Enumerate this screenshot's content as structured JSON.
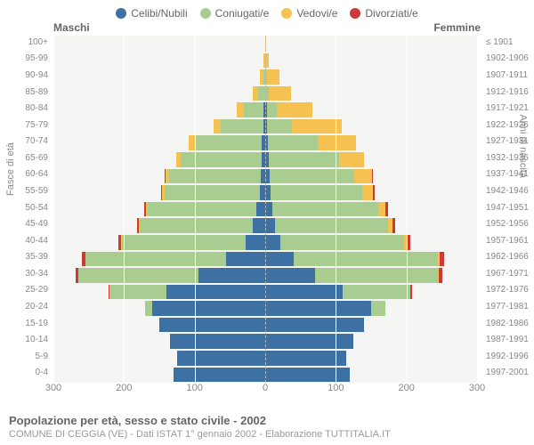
{
  "title": "Popolazione per età, sesso e stato civile - 2002",
  "subtitle": "COMUNE DI CEGGIA (VE) - Dati ISTAT 1° gennaio 2002 - Elaborazione TUTTITALIA.IT",
  "legend": [
    {
      "label": "Celibi/Nubili",
      "color": "#3d71a3"
    },
    {
      "label": "Coniugati/e",
      "color": "#a9cd90"
    },
    {
      "label": "Vedovi/e",
      "color": "#f5c251"
    },
    {
      "label": "Divorziati/e",
      "color": "#cc3939"
    }
  ],
  "headers": {
    "male": "Maschi",
    "female": "Femmine"
  },
  "axes": {
    "left_title": "Fasce di età",
    "right_title": "Anni di nascita",
    "x_max": 300,
    "x_ticks": [
      300,
      200,
      100,
      0,
      100,
      200,
      300
    ]
  },
  "colors": {
    "bg": "#f5f5f3",
    "grid": "#ffffff",
    "center": "#bba87a"
  },
  "rows": [
    {
      "age": "100+",
      "birth": "≤ 1901",
      "m": [
        0,
        0,
        0,
        0
      ],
      "f": [
        0,
        0,
        1,
        0
      ]
    },
    {
      "age": "95-99",
      "birth": "1902-1906",
      "m": [
        0,
        0,
        2,
        0
      ],
      "f": [
        0,
        0,
        5,
        0
      ]
    },
    {
      "age": "90-94",
      "birth": "1907-1911",
      "m": [
        0,
        2,
        5,
        0
      ],
      "f": [
        0,
        2,
        18,
        0
      ]
    },
    {
      "age": "85-89",
      "birth": "1912-1916",
      "m": [
        0,
        10,
        8,
        0
      ],
      "f": [
        0,
        5,
        32,
        0
      ]
    },
    {
      "age": "80-84",
      "birth": "1917-1921",
      "m": [
        2,
        28,
        10,
        0
      ],
      "f": [
        2,
        15,
        50,
        0
      ]
    },
    {
      "age": "75-79",
      "birth": "1922-1926",
      "m": [
        3,
        60,
        10,
        0
      ],
      "f": [
        3,
        35,
        70,
        0
      ]
    },
    {
      "age": "70-74",
      "birth": "1927-1931",
      "m": [
        5,
        95,
        8,
        0
      ],
      "f": [
        4,
        70,
        55,
        0
      ]
    },
    {
      "age": "65-69",
      "birth": "1932-1936",
      "m": [
        5,
        115,
        6,
        0
      ],
      "f": [
        5,
        100,
        35,
        0
      ]
    },
    {
      "age": "60-64",
      "birth": "1937-1941",
      "m": [
        6,
        130,
        5,
        1
      ],
      "f": [
        6,
        120,
        25,
        1
      ]
    },
    {
      "age": "55-59",
      "birth": "1942-1946",
      "m": [
        8,
        135,
        3,
        2
      ],
      "f": [
        8,
        130,
        15,
        2
      ]
    },
    {
      "age": "50-54",
      "birth": "1947-1951",
      "m": [
        12,
        155,
        2,
        3
      ],
      "f": [
        10,
        150,
        10,
        4
      ]
    },
    {
      "age": "45-49",
      "birth": "1952-1956",
      "m": [
        18,
        160,
        1,
        3
      ],
      "f": [
        14,
        160,
        6,
        4
      ]
    },
    {
      "age": "40-44",
      "birth": "1957-1961",
      "m": [
        28,
        175,
        1,
        4
      ],
      "f": [
        22,
        175,
        4,
        5
      ]
    },
    {
      "age": "35-39",
      "birth": "1962-1966",
      "m": [
        55,
        200,
        0,
        5
      ],
      "f": [
        40,
        205,
        2,
        6
      ]
    },
    {
      "age": "30-34",
      "birth": "1967-1971",
      "m": [
        95,
        170,
        0,
        4
      ],
      "f": [
        70,
        175,
        1,
        5
      ]
    },
    {
      "age": "25-29",
      "birth": "1972-1976",
      "m": [
        140,
        80,
        0,
        2
      ],
      "f": [
        110,
        95,
        0,
        3
      ]
    },
    {
      "age": "20-24",
      "birth": "1977-1981",
      "m": [
        160,
        10,
        0,
        0
      ],
      "f": [
        150,
        20,
        0,
        0
      ]
    },
    {
      "age": "15-19",
      "birth": "1982-1986",
      "m": [
        150,
        0,
        0,
        0
      ],
      "f": [
        140,
        0,
        0,
        0
      ]
    },
    {
      "age": "10-14",
      "birth": "1987-1991",
      "m": [
        135,
        0,
        0,
        0
      ],
      "f": [
        125,
        0,
        0,
        0
      ]
    },
    {
      "age": "5-9",
      "birth": "1992-1996",
      "m": [
        125,
        0,
        0,
        0
      ],
      "f": [
        115,
        0,
        0,
        0
      ]
    },
    {
      "age": "0-4",
      "birth": "1997-2001",
      "m": [
        130,
        0,
        0,
        0
      ],
      "f": [
        120,
        0,
        0,
        0
      ]
    }
  ]
}
